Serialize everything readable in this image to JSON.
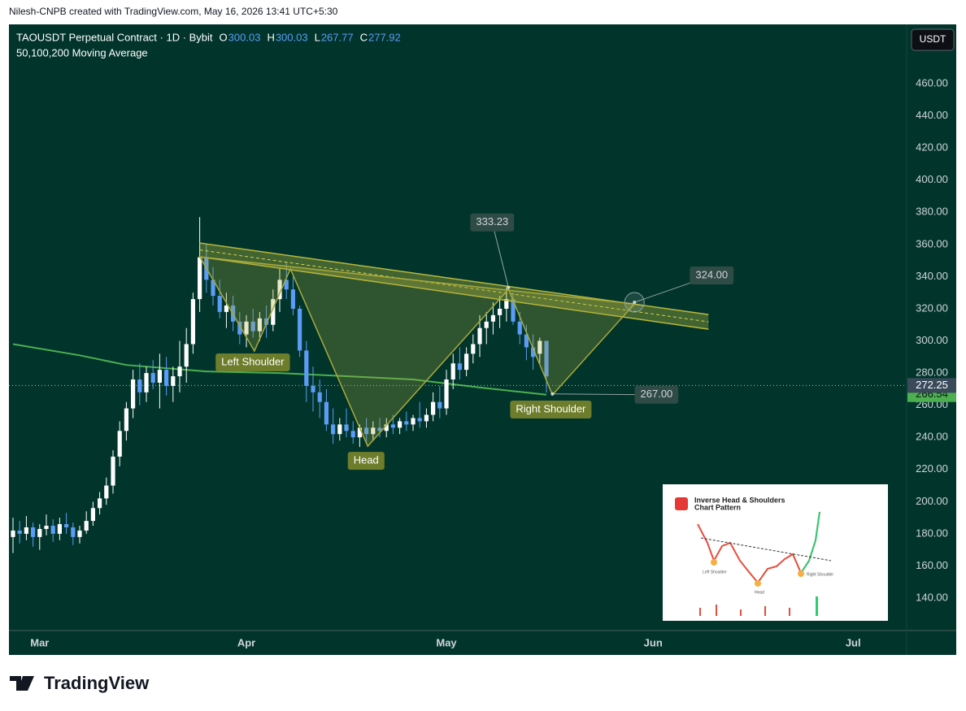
{
  "header": "Nilesh-CNPB created with TradingView.com, May 16, 2026 13:41 UTC+5:30",
  "footer_logo": "TradingView",
  "currency_button": "USDT",
  "chart_data": {
    "type": "candlestick",
    "title": "TAOUSDT Perpetual Contract · 1D · Bybit",
    "subtitle": "50,100,200 Moving Average",
    "legend_values": [
      {
        "key": "O",
        "value": 300.03
      },
      {
        "key": "H",
        "value": 300.03
      },
      {
        "key": "L",
        "value": 267.77
      },
      {
        "key": "C",
        "value": 277.92
      }
    ],
    "up_color": "#ffffff",
    "down_color": "#5b9cf6",
    "open": [
      178,
      182,
      180,
      184,
      178,
      183,
      185,
      180,
      186,
      184,
      178,
      182,
      188,
      196,
      202,
      210,
      228,
      244,
      258,
      276,
      268,
      280,
      274,
      282,
      272,
      278,
      284,
      298,
      326,
      352,
      338,
      328,
      318,
      322,
      312,
      304,
      312,
      306,
      314,
      310,
      326,
      338,
      332,
      320,
      294,
      272,
      268,
      262,
      248,
      242,
      248,
      244,
      240,
      246,
      242,
      246,
      244,
      248,
      246,
      250,
      248,
      252,
      250,
      254,
      262,
      258,
      276,
      286,
      282,
      292,
      298,
      308,
      312,
      316,
      320,
      326,
      312,
      304,
      296,
      292,
      300.03
    ],
    "high": [
      190,
      188,
      191,
      187,
      186,
      192,
      189,
      190,
      193,
      187,
      185,
      194,
      200,
      206,
      215,
      232,
      250,
      262,
      282,
      286,
      284,
      288,
      292,
      290,
      284,
      300,
      308,
      330,
      377,
      360,
      346,
      338,
      330,
      328,
      318,
      316,
      320,
      318,
      322,
      332,
      345,
      349,
      340,
      322,
      300,
      284,
      276,
      270,
      258,
      252,
      258,
      250,
      248,
      252,
      250,
      252,
      252,
      254,
      252,
      256,
      254,
      262,
      258,
      268,
      272,
      282,
      292,
      296,
      296,
      304,
      316,
      318,
      324,
      328,
      333.23,
      330,
      318,
      310,
      304,
      302,
      300.03
    ],
    "low": [
      168,
      174,
      176,
      172,
      170,
      179,
      175,
      176,
      180,
      173,
      174,
      180,
      185,
      192,
      198,
      205,
      222,
      238,
      252,
      260,
      262,
      270,
      258,
      266,
      262,
      268,
      274,
      292,
      318,
      330,
      322,
      314,
      308,
      306,
      298,
      296,
      302,
      300,
      302,
      306,
      318,
      326,
      316,
      290,
      262,
      256,
      252,
      244,
      236,
      238,
      240,
      236,
      234,
      236,
      238,
      240,
      240,
      242,
      242,
      244,
      244,
      246,
      246,
      250,
      252,
      254,
      270,
      276,
      278,
      286,
      290,
      298,
      304,
      308,
      312,
      310,
      298,
      288,
      282,
      286,
      267.77
    ],
    "close": [
      182,
      180,
      184,
      178,
      183,
      185,
      180,
      186,
      184,
      178,
      182,
      188,
      196,
      202,
      210,
      228,
      244,
      258,
      276,
      268,
      280,
      274,
      282,
      272,
      278,
      284,
      298,
      326,
      352,
      338,
      328,
      318,
      322,
      312,
      304,
      312,
      306,
      314,
      310,
      326,
      338,
      332,
      320,
      294,
      272,
      268,
      262,
      248,
      242,
      248,
      244,
      240,
      246,
      242,
      246,
      244,
      248,
      246,
      250,
      248,
      252,
      250,
      254,
      262,
      258,
      276,
      286,
      282,
      292,
      298,
      308,
      312,
      316,
      320,
      326,
      312,
      304,
      296,
      290,
      300.03,
      277.92
    ],
    "moving_average": {
      "color": "#4caf50",
      "x": [
        0,
        10,
        17,
        29,
        40,
        50,
        60,
        70,
        80
      ],
      "values": [
        298,
        291,
        285,
        281,
        280,
        278,
        276,
        271,
        266.54
      ]
    },
    "last_price": 272.25,
    "xlim": [
      -0.61,
      134.02
    ],
    "xticks": [
      {
        "value": 4,
        "label": "Mar"
      },
      {
        "value": 35,
        "label": "Apr"
      },
      {
        "value": 65,
        "label": "May"
      },
      {
        "value": 96,
        "label": "Jun"
      },
      {
        "value": 126,
        "label": "Jul"
      }
    ],
    "ylim": [
      119.8,
      496.9
    ],
    "yticks": [
      {
        "value": 140,
        "label": "140.00"
      },
      {
        "value": 160,
        "label": "160.00"
      },
      {
        "value": 180,
        "label": "180.00"
      },
      {
        "value": 200,
        "label": "200.00"
      },
      {
        "value": 220,
        "label": "220.00"
      },
      {
        "value": 240,
        "label": "240.00"
      },
      {
        "value": 260,
        "label": "260.00"
      },
      {
        "value": 280,
        "label": "280.00"
      },
      {
        "value": 300,
        "label": "300.00"
      },
      {
        "value": 320,
        "label": "320.00"
      },
      {
        "value": 340,
        "label": "340.00"
      },
      {
        "value": 360,
        "label": "360.00"
      },
      {
        "value": 380,
        "label": "380.00"
      },
      {
        "value": 400,
        "label": "400.00"
      },
      {
        "value": 420,
        "label": "420.00"
      },
      {
        "value": 440,
        "label": "440.00"
      },
      {
        "value": 460,
        "label": "460.00"
      }
    ],
    "grid": false,
    "neckline": {
      "upper": [
        {
          "x": 28,
          "y": 360.9
        },
        {
          "x": 104.3,
          "y": 316.4
        }
      ],
      "lower": [
        {
          "x": 28,
          "y": 352.3
        },
        {
          "x": 104.3,
          "y": 307.3
        }
      ]
    },
    "pattern": {
      "points": [
        {
          "x": 28,
          "y": 352.3
        },
        {
          "x": 36.2,
          "y": 293.7
        },
        {
          "x": 41.6,
          "y": 344.7
        },
        {
          "x": 53.2,
          "y": 234.5
        },
        {
          "x": 74.3,
          "y": 332.1
        },
        {
          "x": 80.9,
          "y": 266.4
        },
        {
          "x": 93.2,
          "y": 323
        }
      ],
      "labels": [
        "Left Shoulder",
        "Head",
        "Right Shoulder"
      ]
    },
    "callouts": [
      {
        "x": 74.3,
        "y": 333.23
      },
      {
        "x": 93.2,
        "y": {
          "value": 324,
          "label": "324.00"
        }
      },
      {
        "x": 80.9,
        "y": {
          "value": 267,
          "label": "267.00"
        }
      }
    ]
  },
  "inset": {
    "title": [
      "Inverse Head & Shoulders",
      "Chart Pattern"
    ],
    "labels": [
      "Left Shoulder",
      "Head",
      "Right Shoulder"
    ]
  }
}
